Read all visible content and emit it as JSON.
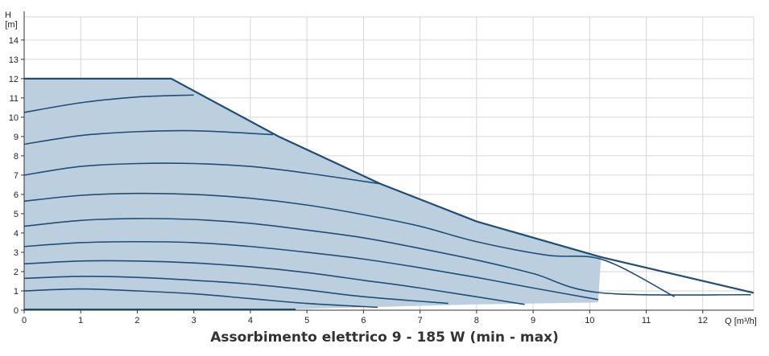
{
  "chart_data": {
    "type": "line",
    "title": "",
    "caption": "Assorbimento elettrico 9 - 185 W (min - max)",
    "ylabel_top": "H",
    "ylabel_bottom": "[m]",
    "xlabel": "Q [m³/h]",
    "xlim": [
      0,
      12.9
    ],
    "ylim": [
      0,
      15.2
    ],
    "x_ticks": [
      "0",
      "1",
      "2",
      "3",
      "4",
      "5",
      "6",
      "7",
      "8",
      "9",
      "10",
      "11",
      "12"
    ],
    "y_ticks": [
      "0",
      "1",
      "2",
      "3",
      "4",
      "5",
      "6",
      "7",
      "8",
      "9",
      "10",
      "11",
      "12",
      "13",
      "14"
    ],
    "grid": true,
    "colors": {
      "line": "#1f4e79",
      "fill": "#bccfdf",
      "grid": "#d6d6d6"
    },
    "max_curve": [
      [
        0,
        12.0
      ],
      [
        2.6,
        12.0
      ],
      [
        4.5,
        9.0
      ],
      [
        6.3,
        6.55
      ],
      [
        8.0,
        4.6
      ],
      [
        10.2,
        2.75
      ],
      [
        12.9,
        0.9
      ]
    ],
    "operating_area": [
      [
        0,
        12.0
      ],
      [
        2.6,
        12.0
      ],
      [
        4.5,
        9.0
      ],
      [
        6.3,
        6.55
      ],
      [
        8.0,
        4.6
      ],
      [
        10.2,
        2.75
      ],
      [
        10.15,
        0.4
      ],
      [
        8.0,
        0.3
      ],
      [
        6.0,
        0.15
      ],
      [
        4.8,
        0.05
      ],
      [
        0,
        0.05
      ]
    ],
    "series": [
      {
        "values": [
          [
            0,
            10.25
          ],
          [
            1,
            10.75
          ],
          [
            2,
            11.05
          ],
          [
            3,
            11.15
          ]
        ]
      },
      {
        "values": [
          [
            0,
            8.6
          ],
          [
            1,
            9.05
          ],
          [
            2,
            9.25
          ],
          [
            3,
            9.3
          ],
          [
            4.4,
            9.1
          ]
        ]
      },
      {
        "values": [
          [
            0,
            7.0
          ],
          [
            1,
            7.45
          ],
          [
            2,
            7.6
          ],
          [
            3,
            7.6
          ],
          [
            4,
            7.45
          ],
          [
            5,
            7.1
          ],
          [
            6.3,
            6.55
          ]
        ]
      },
      {
        "values": [
          [
            0,
            5.65
          ],
          [
            1,
            5.95
          ],
          [
            2,
            6.05
          ],
          [
            3,
            6.0
          ],
          [
            4,
            5.8
          ],
          [
            5,
            5.45
          ],
          [
            6,
            4.95
          ],
          [
            7,
            4.35
          ],
          [
            8,
            3.55
          ],
          [
            9.25,
            2.85
          ],
          [
            10.25,
            2.6
          ],
          [
            11.5,
            0.7
          ]
        ]
      },
      {
        "values": [
          [
            0,
            4.35
          ],
          [
            1,
            4.65
          ],
          [
            2,
            4.75
          ],
          [
            3,
            4.7
          ],
          [
            4,
            4.5
          ],
          [
            5,
            4.15
          ],
          [
            6,
            3.75
          ],
          [
            7,
            3.2
          ],
          [
            8,
            2.6
          ],
          [
            9,
            1.9
          ],
          [
            10.2,
            0.9
          ],
          [
            12.85,
            0.8
          ]
        ]
      },
      {
        "values": [
          [
            0,
            3.3
          ],
          [
            1,
            3.5
          ],
          [
            2,
            3.55
          ],
          [
            3,
            3.5
          ],
          [
            4,
            3.3
          ],
          [
            5,
            3.0
          ],
          [
            6,
            2.65
          ],
          [
            7,
            2.2
          ],
          [
            8,
            1.7
          ],
          [
            9,
            1.15
          ],
          [
            10.15,
            0.55
          ]
        ]
      },
      {
        "values": [
          [
            0,
            2.4
          ],
          [
            1,
            2.55
          ],
          [
            2,
            2.55
          ],
          [
            3,
            2.45
          ],
          [
            4,
            2.25
          ],
          [
            5,
            1.95
          ],
          [
            6,
            1.55
          ],
          [
            7,
            1.15
          ],
          [
            8.85,
            0.3
          ]
        ]
      },
      {
        "values": [
          [
            0,
            1.65
          ],
          [
            1,
            1.75
          ],
          [
            2,
            1.7
          ],
          [
            3,
            1.55
          ],
          [
            4,
            1.35
          ],
          [
            5,
            1.05
          ],
          [
            6,
            0.7
          ],
          [
            7.5,
            0.35
          ]
        ]
      },
      {
        "values": [
          [
            0,
            1.0
          ],
          [
            1,
            1.1
          ],
          [
            2,
            1.0
          ],
          [
            3,
            0.85
          ],
          [
            4,
            0.6
          ],
          [
            5,
            0.35
          ],
          [
            6.25,
            0.15
          ]
        ]
      },
      {
        "values": [
          [
            0,
            0.05
          ],
          [
            4.8,
            0.05
          ]
        ]
      }
    ]
  }
}
